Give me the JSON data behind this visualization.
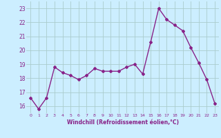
{
  "x": [
    0,
    1,
    2,
    3,
    4,
    5,
    6,
    7,
    8,
    9,
    10,
    11,
    12,
    13,
    14,
    15,
    16,
    17,
    18,
    19,
    20,
    21,
    22,
    23
  ],
  "y": [
    16.6,
    15.8,
    16.6,
    18.8,
    18.4,
    18.2,
    17.9,
    18.2,
    18.7,
    18.5,
    18.5,
    18.5,
    18.8,
    19.0,
    18.3,
    20.6,
    23.0,
    22.2,
    21.8,
    21.4,
    20.2,
    19.1,
    17.9,
    16.2
  ],
  "line_color": "#882288",
  "marker": "D",
  "marker_size": 2,
  "linewidth": 1.0,
  "bg_color": "#cceeff",
  "grid_color": "#aacccc",
  "xlabel": "Windchill (Refroidissement éolien,°C)",
  "xlabel_color": "#882288",
  "tick_color": "#882288",
  "ylim": [
    15.5,
    23.5
  ],
  "xlim": [
    -0.5,
    23.5
  ],
  "yticks": [
    16,
    17,
    18,
    19,
    20,
    21,
    22,
    23
  ],
  "xticks": [
    0,
    1,
    2,
    3,
    4,
    5,
    6,
    7,
    8,
    9,
    10,
    11,
    12,
    13,
    14,
    15,
    16,
    17,
    18,
    19,
    20,
    21,
    22,
    23
  ]
}
